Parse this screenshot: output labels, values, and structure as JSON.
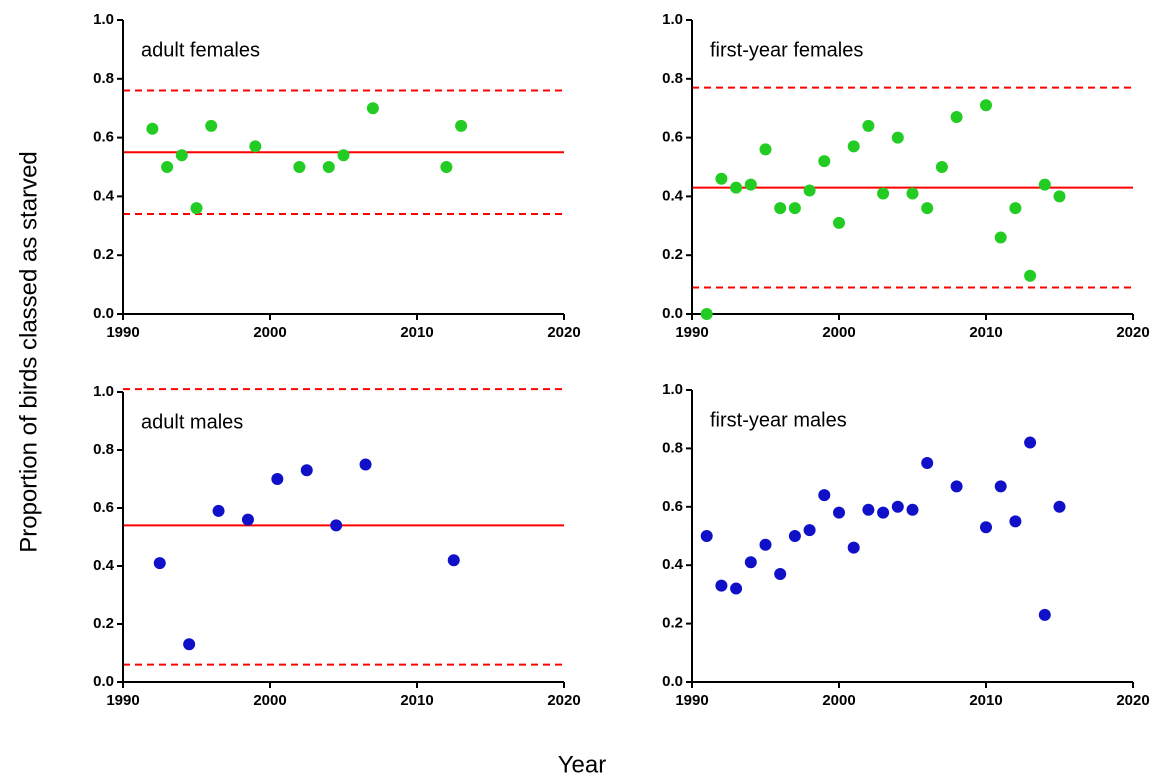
{
  "ylabel": "Proportion of birds classed as starved",
  "xlabel": "Year",
  "chart_data": [
    {
      "type": "scatter",
      "title": "adult females",
      "color": "#22cc22",
      "x": [
        1992,
        1993,
        1994,
        1995,
        1996,
        1999,
        2002,
        2004,
        2005,
        2007,
        2012,
        2013
      ],
      "values": [
        0.63,
        0.5,
        0.54,
        0.36,
        0.64,
        0.57,
        0.5,
        0.5,
        0.54,
        0.7,
        0.5,
        0.64
      ],
      "xlim": [
        1990,
        2020
      ],
      "xticks": [
        1990,
        2000,
        2010,
        2020
      ],
      "ylim": [
        0,
        1
      ],
      "yticks": [
        {
          "value": 0,
          "label": "0.0"
        },
        0.2,
        0.4,
        0.6,
        0.8,
        {
          "value": 1,
          "label": "1.0"
        }
      ],
      "hlines": [
        {
          "value": 0.55,
          "style": "solid",
          "color": "#ff0000"
        },
        {
          "value": 0.76,
          "style": "dashed",
          "color": "#ff0000"
        },
        {
          "value": 0.34,
          "style": "dashed",
          "color": "#ff0000"
        }
      ]
    },
    {
      "type": "scatter",
      "title": "first-year females",
      "color": "#22cc22",
      "x": [
        1991,
        1992,
        1993,
        1994,
        1995,
        1996,
        1997,
        1998,
        1999,
        2000,
        2001,
        2002,
        2003,
        2004,
        2005,
        2006,
        2007,
        2008,
        2010,
        2011,
        2012,
        2013,
        2014,
        2015
      ],
      "values": [
        0.0,
        0.46,
        0.43,
        0.44,
        0.56,
        0.36,
        0.36,
        0.42,
        0.52,
        0.31,
        0.57,
        0.64,
        0.41,
        0.6,
        0.41,
        0.36,
        0.5,
        0.67,
        0.71,
        0.26,
        0.36,
        0.13,
        0.44,
        0.4
      ],
      "xlim": [
        1990,
        2020
      ],
      "xticks": [
        1990,
        2000,
        2010,
        2020
      ],
      "ylim": [
        0,
        1
      ],
      "yticks": [
        {
          "value": 0,
          "label": "0.0"
        },
        0.2,
        0.4,
        0.6,
        0.8,
        {
          "value": 1,
          "label": "1.0"
        }
      ],
      "hlines": [
        {
          "value": 0.43,
          "style": "solid",
          "color": "#ff0000"
        },
        {
          "value": 0.77,
          "style": "dashed",
          "color": "#ff0000"
        },
        {
          "value": 0.09,
          "style": "dashed",
          "color": "#ff0000"
        }
      ]
    },
    {
      "type": "scatter",
      "title": "adult males",
      "color": "#1010c8",
      "x": [
        1992.5,
        1994.5,
        1996.5,
        1998.5,
        2000.5,
        2002.5,
        2004.5,
        2006.5,
        2012.5
      ],
      "values": [
        0.41,
        0.13,
        0.59,
        0.56,
        0.7,
        0.73,
        0.54,
        0.75,
        0.42
      ],
      "xlim": [
        1990,
        2020
      ],
      "xticks": [
        1990,
        2000,
        2010,
        2020
      ],
      "ylim": [
        0,
        1
      ],
      "yticks": [
        {
          "value": 0,
          "label": "0.0"
        },
        0.2,
        0.4,
        0.6,
        0.8,
        {
          "value": 1,
          "label": "1.0"
        }
      ],
      "hlines": [
        {
          "value": 0.54,
          "style": "solid",
          "color": "#ff0000"
        },
        {
          "value": 1.01,
          "style": "dashed",
          "color": "#ff0000"
        },
        {
          "value": 0.06,
          "style": "dashed",
          "color": "#ff0000"
        }
      ]
    },
    {
      "type": "scatter",
      "title": "first-year males",
      "color": "#1010c8",
      "x": [
        1991,
        1992,
        1993,
        1994,
        1995,
        1996,
        1997,
        1998,
        1999,
        2000,
        2001,
        2002,
        2003,
        2004,
        2005,
        2006,
        2008,
        2010,
        2011,
        2012,
        2013,
        2014,
        2015
      ],
      "values": [
        0.5,
        0.33,
        0.32,
        0.41,
        0.47,
        0.37,
        0.5,
        0.52,
        0.64,
        0.58,
        0.46,
        0.59,
        0.58,
        0.6,
        0.59,
        0.75,
        0.67,
        0.53,
        0.67,
        0.55,
        0.82,
        0.23,
        0.6
      ],
      "xlim": [
        1990,
        2020
      ],
      "xticks": [
        1990,
        2000,
        2010,
        2020
      ],
      "ylim": [
        0,
        1
      ],
      "yticks": [
        {
          "value": 0,
          "label": "0.0"
        },
        0.2,
        0.4,
        0.6,
        0.8,
        {
          "value": 1,
          "label": "1.0"
        }
      ]
    }
  ]
}
